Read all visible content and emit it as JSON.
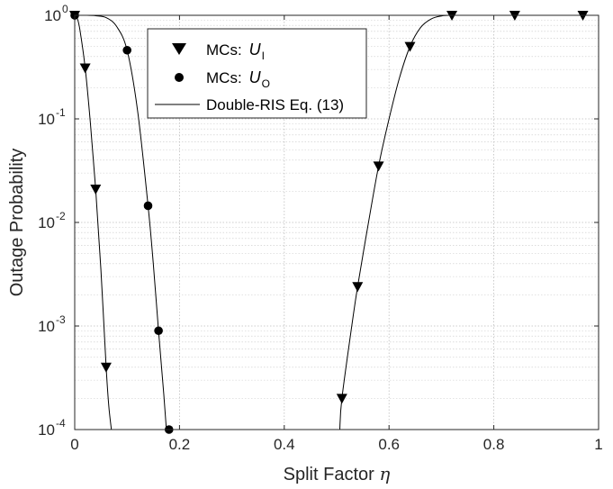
{
  "chart_data": {
    "type": "line",
    "xlabel": "Split Factor",
    "xlabel_symbol": "η",
    "ylabel": "Outage Probability",
    "xlim": [
      0,
      1
    ],
    "ylim": [
      0.0001,
      1
    ],
    "yscale": "log",
    "grid": true,
    "legend_position": "top-left",
    "x_ticks": [
      0,
      0.2,
      0.4,
      0.6,
      0.8,
      1
    ],
    "x_tick_labels": [
      "0",
      "0.2",
      "0.4",
      "0.6",
      "0.8",
      "1"
    ],
    "y_ticks": [
      {
        "base": "10",
        "exp": "0"
      },
      {
        "base": "10",
        "exp": "-1"
      },
      {
        "base": "10",
        "exp": "-2"
      },
      {
        "base": "10",
        "exp": "-3"
      },
      {
        "base": "10",
        "exp": "-4"
      }
    ],
    "series": [
      {
        "name": "MCs:",
        "name_symbol": "U",
        "name_subscript": "I",
        "marker": "triangle-down",
        "x": [
          0,
          0.02,
          0.04,
          0.06,
          0.51,
          0.54,
          0.58,
          0.64,
          0.72,
          0.84,
          0.97
        ],
        "y": [
          1,
          0.31,
          0.021,
          0.0004,
          0.0002,
          0.0024,
          0.035,
          0.5,
          1,
          1,
          1
        ]
      },
      {
        "name": "MCs:",
        "name_symbol": "U",
        "name_subscript": "O",
        "marker": "circle",
        "x": [
          0,
          0.1,
          0.14,
          0.16,
          0.18
        ],
        "y": [
          1,
          0.46,
          0.0145,
          0.0009,
          0.0001
        ]
      },
      {
        "name": "Double-RIS Eq. (13)",
        "marker": "line",
        "curves": [
          {
            "x": [
              0,
              0.005,
              0.01,
              0.02,
              0.03,
              0.04,
              0.05,
              0.06,
              0.065,
              0.07
            ],
            "y": [
              1,
              0.93,
              0.72,
              0.31,
              0.09,
              0.021,
              0.0035,
              0.0004,
              0.00017,
              0.0001
            ]
          },
          {
            "x": [
              0,
              0.02,
              0.04,
              0.06,
              0.08,
              0.1,
              0.12,
              0.14,
              0.15,
              0.16,
              0.17,
              0.175
            ],
            "y": [
              1,
              1,
              0.99,
              0.95,
              0.78,
              0.46,
              0.12,
              0.0145,
              0.004,
              0.0009,
              0.00022,
              0.0001
            ]
          },
          {
            "x": [
              0.506,
              0.51,
              0.53,
              0.54,
              0.56,
              0.58,
              0.6,
              0.62,
              0.64,
              0.66,
              0.68,
              0.7,
              0.72,
              0.76,
              1
            ],
            "y": [
              0.0001,
              0.0002,
              0.0011,
              0.0024,
              0.0095,
              0.035,
              0.1,
              0.25,
              0.5,
              0.76,
              0.92,
              0.985,
              1,
              1,
              1
            ]
          }
        ]
      }
    ]
  }
}
